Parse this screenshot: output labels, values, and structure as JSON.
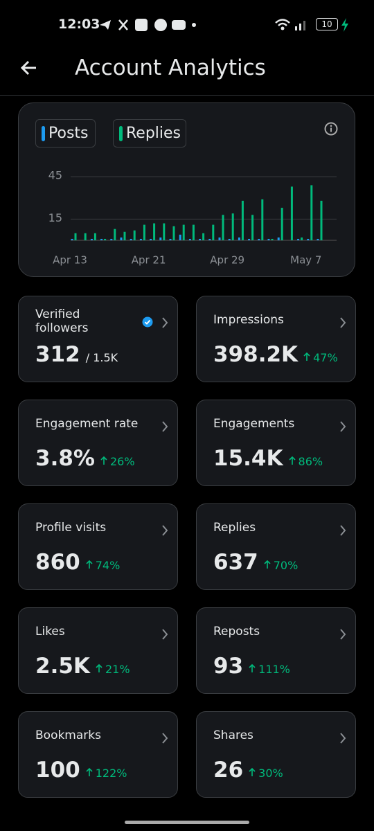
{
  "status_bar": {
    "time": "12:03",
    "battery": "10"
  },
  "header": {
    "title": "Account Analytics"
  },
  "chart_data": {
    "type": "bar",
    "categories": [
      "Apr 13",
      null,
      null,
      null,
      null,
      null,
      null,
      null,
      "Apr 21",
      null,
      null,
      null,
      null,
      null,
      null,
      null,
      "Apr 29",
      null,
      null,
      null,
      null,
      null,
      null,
      null,
      "May 7",
      null
    ],
    "series": [
      {
        "name": "Posts",
        "color": "#1d9bf0",
        "values": [
          1,
          0,
          1,
          1,
          1,
          2,
          1,
          1,
          1,
          2,
          1,
          4,
          1,
          1,
          1,
          2,
          1,
          2,
          1,
          1,
          1,
          2,
          0,
          1,
          1,
          1
        ]
      },
      {
        "name": "Replies",
        "color": "#00ba7c",
        "values": [
          5,
          5,
          5,
          1,
          8,
          6,
          7,
          11,
          12,
          12,
          10,
          11,
          11,
          5,
          11,
          18,
          19,
          28,
          18,
          29,
          1,
          23,
          38,
          2,
          39,
          28
        ]
      }
    ],
    "ylim": [
      0,
      50
    ],
    "yticks": [
      15,
      45
    ],
    "grid": true
  },
  "cards": [
    {
      "title": "Verified followers",
      "value": "312",
      "total": "/ 1.5K",
      "verified": true
    },
    {
      "title": "Impressions",
      "value": "398.2K",
      "change": "47%"
    },
    {
      "title": "Engagement rate",
      "value": "3.8%",
      "change": "26%"
    },
    {
      "title": "Engagements",
      "value": "15.4K",
      "change": "86%"
    },
    {
      "title": "Profile visits",
      "value": "860",
      "change": "74%"
    },
    {
      "title": "Replies",
      "value": "637",
      "change": "70%"
    },
    {
      "title": "Likes",
      "value": "2.5K",
      "change": "21%"
    },
    {
      "title": "Reposts",
      "value": "93",
      "change": "111%"
    },
    {
      "title": "Bookmarks",
      "value": "100",
      "change": "122%"
    },
    {
      "title": "Shares",
      "value": "26",
      "change": "30%"
    }
  ]
}
